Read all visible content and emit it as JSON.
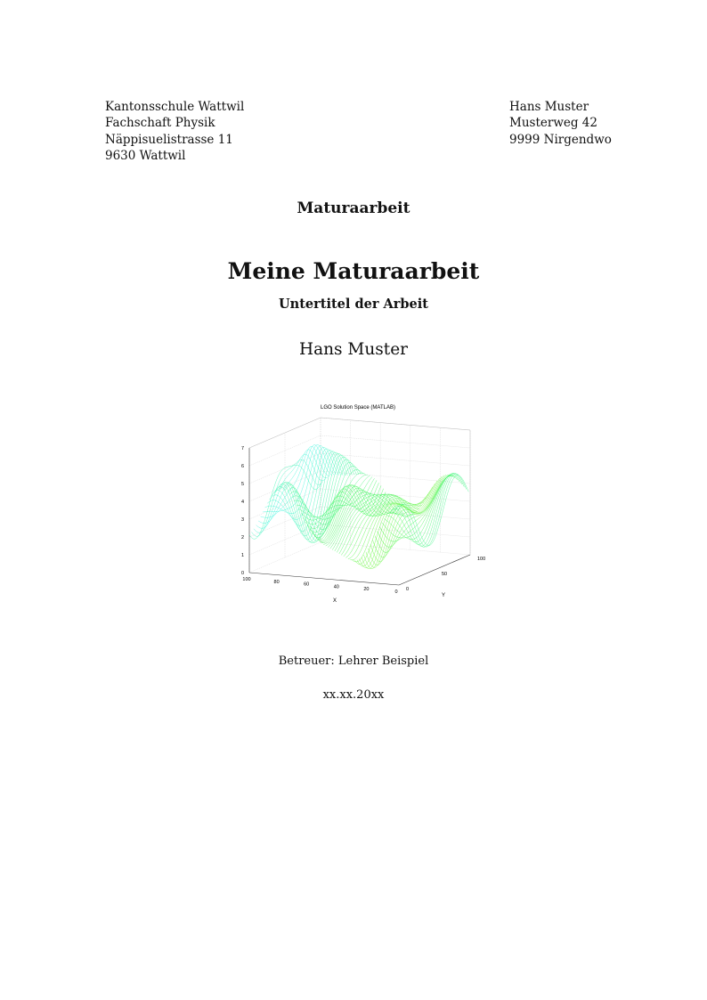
{
  "school_address": [
    "Kantonsschule Wattwil",
    "Fachschaft Physik",
    "Näppisuelistrasse 11",
    "9630 Wattwil"
  ],
  "author_address": [
    "Hans Muster",
    "Musterweg 42",
    "9999 Nirgendwo"
  ],
  "document_type": "Maturaarbeit",
  "title": "Meine Maturaarbeit",
  "subtitle": "Untertitel der Arbeit",
  "author": "Hans Muster",
  "figure": {
    "title": "LGO Solution Space (MATLAB)",
    "z_ticks": [
      "0",
      "1",
      "2",
      "3",
      "4",
      "5",
      "6",
      "7"
    ],
    "x_ticks": [
      "100",
      "80",
      "60",
      "40",
      "20",
      "0"
    ],
    "y_ticks": [
      "0",
      "50",
      "100"
    ],
    "x_label": "X",
    "y_label": "Y"
  },
  "supervisor": "Betreuer: Lehrer Beispiel",
  "date": "xx.xx.20xx"
}
